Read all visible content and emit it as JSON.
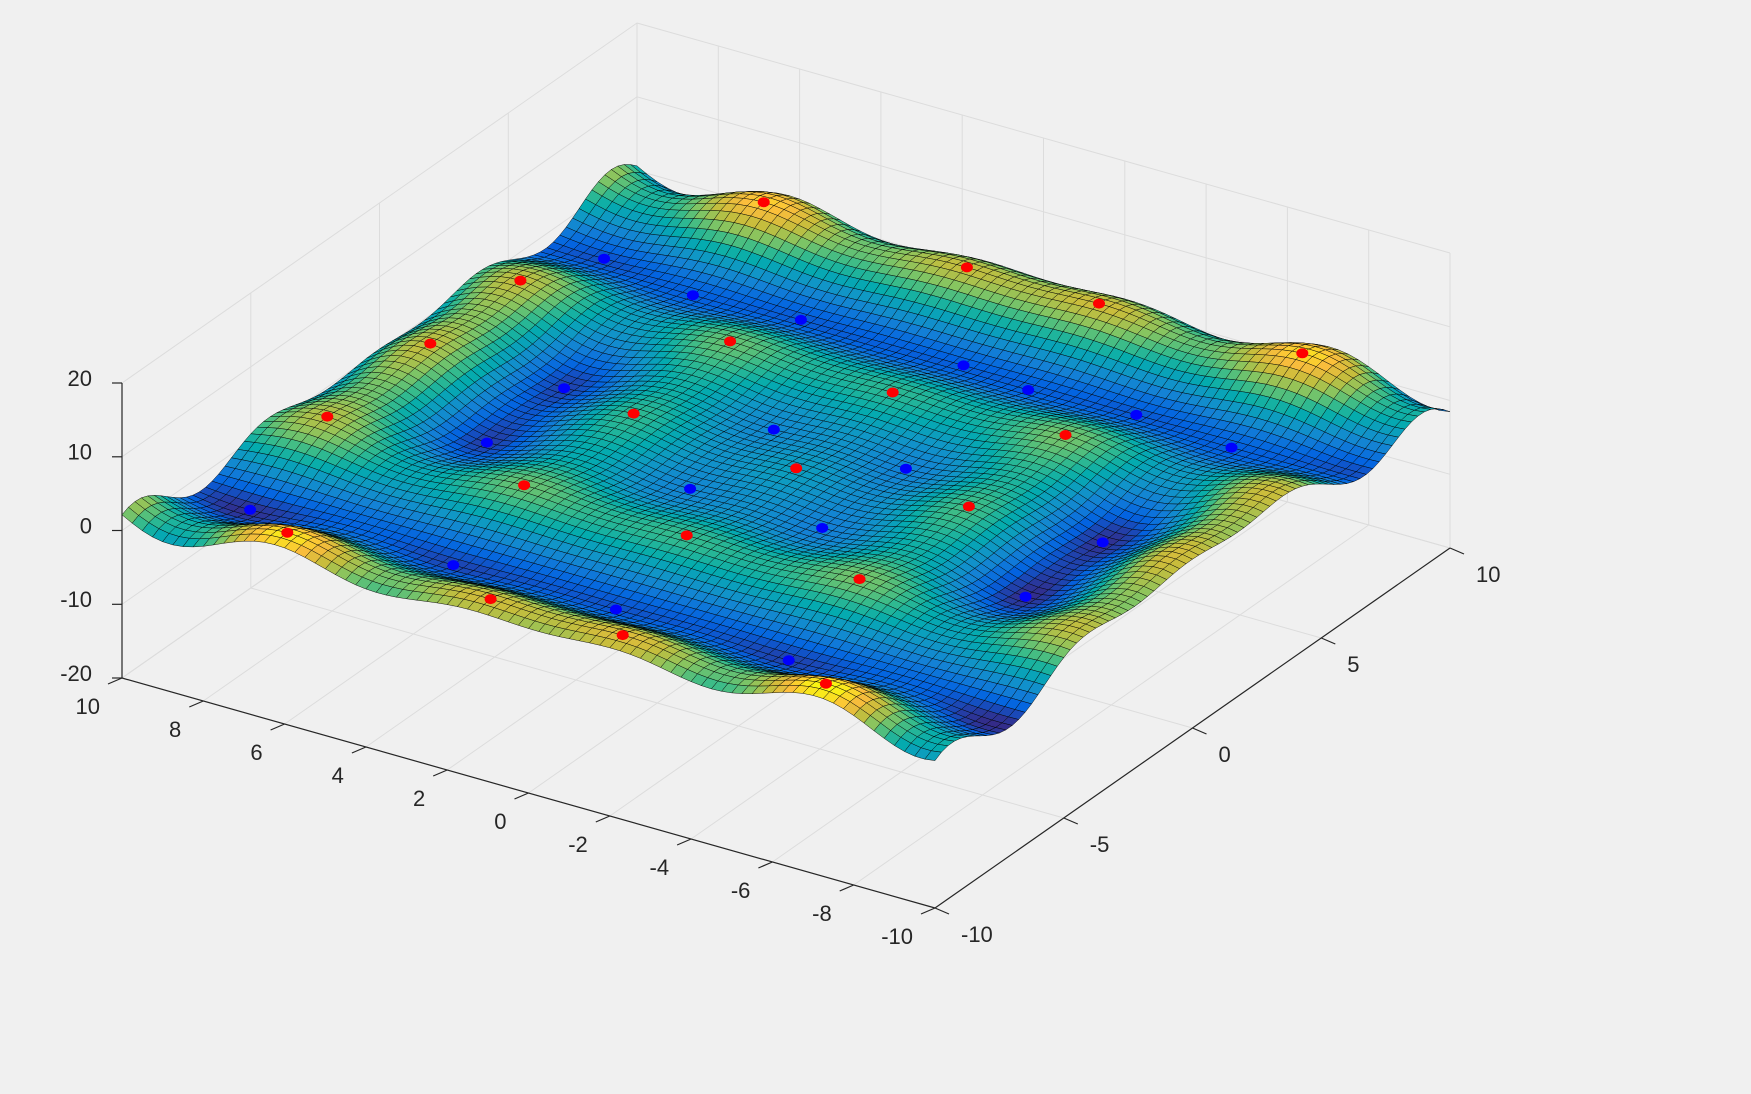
{
  "chart_data": {
    "type": "surface3d",
    "title": "",
    "xlabel": "",
    "ylabel": "",
    "zlabel": "",
    "surface": {
      "function": "z = x*sin(x) + y*sin(y) ... approximated: z = 0.22*(x*sin(2.1*x) + y*sin(2.1*y))*... (decorative peaks/valleys)",
      "colormap": "parula",
      "edge_color": "black",
      "grid_resolution": 80
    },
    "xlim": [
      -10,
      10
    ],
    "ylim": [
      -10,
      10
    ],
    "zlim": [
      -20,
      20
    ],
    "x_ticks": [
      "-10",
      "-8",
      "-6",
      "-4",
      "-2",
      "0",
      "2",
      "4",
      "6",
      "8",
      "10"
    ],
    "y_ticks": [
      "-10",
      "-5",
      "0",
      "5",
      "10"
    ],
    "z_ticks": [
      "-20",
      "-10",
      "0",
      "10",
      "20"
    ],
    "markers": {
      "maxima_color": "#ff0000",
      "minima_color": "#0000ff"
    },
    "grid": true,
    "box": false
  }
}
